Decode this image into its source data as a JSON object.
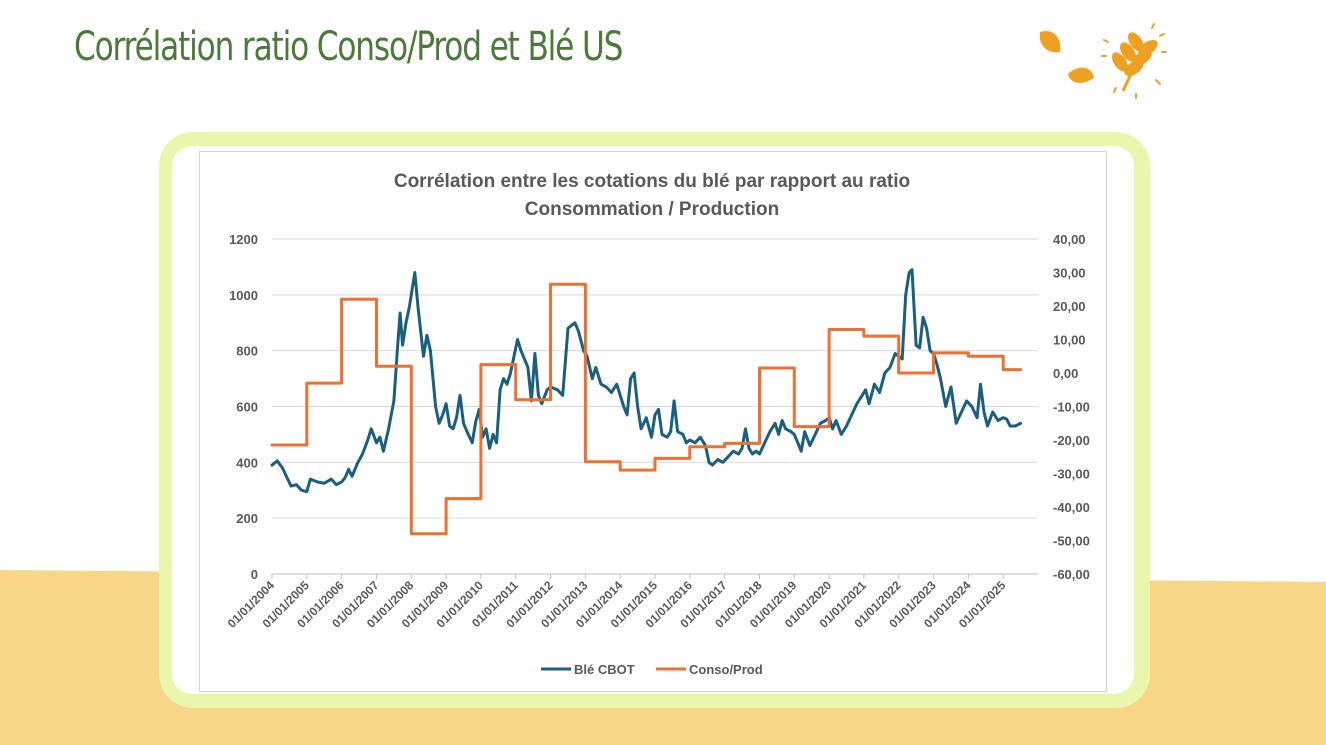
{
  "slide": {
    "title": "Corrélation ratio Conso/Prod et Blé US"
  },
  "logo": {
    "icon": "wheat-leaf-icon",
    "colors": {
      "leaf": "#f0a020"
    }
  },
  "colors": {
    "title": "#4a7a3a",
    "frame": "#ebf6ad",
    "band": "#f8d688",
    "series_ble": "#1a5f80",
    "series_conso": "#ed7031",
    "grid": "#d9d9d9",
    "text": "#595959"
  },
  "chart_data": {
    "type": "line",
    "title_line1": "Corrélation entre les cotations du blé par rapport au ratio",
    "title_line2": "Consommation / Production",
    "ylim": [
      0,
      1200
    ],
    "y_ticks": [
      "0",
      "200",
      "400",
      "600",
      "800",
      "1000",
      "1200"
    ],
    "y_tick_values": [
      0,
      200,
      400,
      600,
      800,
      1000,
      1200
    ],
    "y2lim": [
      -60,
      40
    ],
    "y2_ticks": [
      "-60,00",
      "-50,00",
      "-40,00",
      "-30,00",
      "-20,00",
      "-10,00",
      "0,00",
      "10,00",
      "20,00",
      "30,00",
      "40,00"
    ],
    "y2_tick_values": [
      -60,
      -50,
      -40,
      -30,
      -20,
      -10,
      0,
      10,
      20,
      30,
      40
    ],
    "x_range": [
      2004.0,
      2026.0
    ],
    "x_ticks": [
      "01/01/2004",
      "01/01/2005",
      "01/01/2006",
      "01/01/2007",
      "01/01/2008",
      "01/01/2009",
      "01/01/2010",
      "01/01/2011",
      "01/01/2012",
      "01/01/2013",
      "01/01/2014",
      "01/01/2015",
      "01/01/2016",
      "01/01/2017",
      "01/01/2018",
      "01/01/2019",
      "01/01/2020",
      "01/01/2021",
      "01/01/2022",
      "01/01/2023",
      "01/01/2024",
      "01/01/2025"
    ],
    "x_tick_values": [
      2004,
      2005,
      2006,
      2007,
      2008,
      2009,
      2010,
      2011,
      2012,
      2013,
      2014,
      2015,
      2016,
      2017,
      2018,
      2019,
      2020,
      2021,
      2022,
      2023,
      2024,
      2025
    ],
    "grid": true,
    "legend_position": "bottom",
    "series": [
      {
        "name": "Blé CBOT",
        "axis": "left",
        "color": "#1a5f80",
        "points": [
          [
            2004.0,
            390
          ],
          [
            2004.15,
            405
          ],
          [
            2004.3,
            380
          ],
          [
            2004.45,
            340
          ],
          [
            2004.55,
            315
          ],
          [
            2004.7,
            320
          ],
          [
            2004.85,
            300
          ],
          [
            2005.0,
            295
          ],
          [
            2005.1,
            340
          ],
          [
            2005.3,
            330
          ],
          [
            2005.5,
            325
          ],
          [
            2005.7,
            340
          ],
          [
            2005.85,
            320
          ],
          [
            2006.0,
            330
          ],
          [
            2006.1,
            345
          ],
          [
            2006.2,
            375
          ],
          [
            2006.3,
            350
          ],
          [
            2006.45,
            395
          ],
          [
            2006.6,
            430
          ],
          [
            2006.75,
            480
          ],
          [
            2006.85,
            520
          ],
          [
            2007.0,
            470
          ],
          [
            2007.1,
            490
          ],
          [
            2007.2,
            440
          ],
          [
            2007.35,
            520
          ],
          [
            2007.5,
            620
          ],
          [
            2007.6,
            800
          ],
          [
            2007.68,
            935
          ],
          [
            2007.75,
            820
          ],
          [
            2007.85,
            900
          ],
          [
            2007.95,
            960
          ],
          [
            2008.1,
            1080
          ],
          [
            2008.2,
            950
          ],
          [
            2008.35,
            780
          ],
          [
            2008.45,
            855
          ],
          [
            2008.55,
            800
          ],
          [
            2008.7,
            600
          ],
          [
            2008.8,
            540
          ],
          [
            2008.9,
            570
          ],
          [
            2009.0,
            610
          ],
          [
            2009.1,
            530
          ],
          [
            2009.2,
            520
          ],
          [
            2009.3,
            560
          ],
          [
            2009.4,
            640
          ],
          [
            2009.5,
            540
          ],
          [
            2009.6,
            510
          ],
          [
            2009.75,
            470
          ],
          [
            2009.85,
            545
          ],
          [
            2009.95,
            590
          ],
          [
            2010.05,
            490
          ],
          [
            2010.15,
            520
          ],
          [
            2010.25,
            450
          ],
          [
            2010.35,
            500
          ],
          [
            2010.45,
            470
          ],
          [
            2010.55,
            660
          ],
          [
            2010.65,
            700
          ],
          [
            2010.75,
            680
          ],
          [
            2010.85,
            720
          ],
          [
            2010.95,
            780
          ],
          [
            2011.05,
            840
          ],
          [
            2011.15,
            800
          ],
          [
            2011.25,
            770
          ],
          [
            2011.35,
            740
          ],
          [
            2011.45,
            620
          ],
          [
            2011.55,
            790
          ],
          [
            2011.65,
            640
          ],
          [
            2011.75,
            610
          ],
          [
            2011.9,
            660
          ],
          [
            2012.0,
            670
          ],
          [
            2012.2,
            660
          ],
          [
            2012.35,
            640
          ],
          [
            2012.5,
            880
          ],
          [
            2012.6,
            890
          ],
          [
            2012.7,
            900
          ],
          [
            2012.8,
            870
          ],
          [
            2012.95,
            800
          ],
          [
            2013.05,
            780
          ],
          [
            2013.2,
            700
          ],
          [
            2013.3,
            740
          ],
          [
            2013.45,
            680
          ],
          [
            2013.6,
            670
          ],
          [
            2013.75,
            650
          ],
          [
            2013.9,
            680
          ],
          [
            2014.0,
            640
          ],
          [
            2014.1,
            600
          ],
          [
            2014.2,
            570
          ],
          [
            2014.3,
            700
          ],
          [
            2014.4,
            720
          ],
          [
            2014.5,
            600
          ],
          [
            2014.6,
            520
          ],
          [
            2014.75,
            560
          ],
          [
            2014.9,
            490
          ],
          [
            2015.0,
            570
          ],
          [
            2015.1,
            590
          ],
          [
            2015.2,
            500
          ],
          [
            2015.35,
            490
          ],
          [
            2015.45,
            510
          ],
          [
            2015.55,
            620
          ],
          [
            2015.65,
            510
          ],
          [
            2015.8,
            500
          ],
          [
            2015.9,
            470
          ],
          [
            2016.0,
            480
          ],
          [
            2016.15,
            470
          ],
          [
            2016.3,
            490
          ],
          [
            2016.45,
            460
          ],
          [
            2016.55,
            400
          ],
          [
            2016.65,
            390
          ],
          [
            2016.8,
            410
          ],
          [
            2016.95,
            400
          ],
          [
            2017.1,
            420
          ],
          [
            2017.25,
            440
          ],
          [
            2017.4,
            430
          ],
          [
            2017.5,
            450
          ],
          [
            2017.6,
            520
          ],
          [
            2017.7,
            450
          ],
          [
            2017.8,
            430
          ],
          [
            2017.9,
            440
          ],
          [
            2018.0,
            430
          ],
          [
            2018.15,
            470
          ],
          [
            2018.3,
            510
          ],
          [
            2018.45,
            540
          ],
          [
            2018.55,
            500
          ],
          [
            2018.65,
            550
          ],
          [
            2018.75,
            520
          ],
          [
            2018.9,
            510
          ],
          [
            2019.0,
            500
          ],
          [
            2019.1,
            470
          ],
          [
            2019.2,
            440
          ],
          [
            2019.3,
            510
          ],
          [
            2019.45,
            460
          ],
          [
            2019.6,
            500
          ],
          [
            2019.75,
            540
          ],
          [
            2019.9,
            550
          ],
          [
            2020.0,
            560
          ],
          [
            2020.1,
            520
          ],
          [
            2020.2,
            550
          ],
          [
            2020.35,
            500
          ],
          [
            2020.5,
            530
          ],
          [
            2020.65,
            570
          ],
          [
            2020.8,
            610
          ],
          [
            2020.95,
            640
          ],
          [
            2021.05,
            660
          ],
          [
            2021.15,
            610
          ],
          [
            2021.3,
            680
          ],
          [
            2021.45,
            650
          ],
          [
            2021.6,
            720
          ],
          [
            2021.75,
            740
          ],
          [
            2021.9,
            790
          ],
          [
            2022.0,
            780
          ],
          [
            2022.1,
            770
          ],
          [
            2022.2,
            1000
          ],
          [
            2022.3,
            1080
          ],
          [
            2022.38,
            1090
          ],
          [
            2022.5,
            820
          ],
          [
            2022.6,
            810
          ],
          [
            2022.7,
            920
          ],
          [
            2022.8,
            880
          ],
          [
            2022.9,
            800
          ],
          [
            2023.0,
            790
          ],
          [
            2023.1,
            750
          ],
          [
            2023.2,
            700
          ],
          [
            2023.35,
            600
          ],
          [
            2023.5,
            670
          ],
          [
            2023.65,
            540
          ],
          [
            2023.8,
            580
          ],
          [
            2023.95,
            620
          ],
          [
            2024.1,
            600
          ],
          [
            2024.25,
            560
          ],
          [
            2024.35,
            680
          ],
          [
            2024.45,
            580
          ],
          [
            2024.55,
            530
          ],
          [
            2024.7,
            580
          ],
          [
            2024.85,
            550
          ],
          [
            2025.0,
            560
          ],
          [
            2025.1,
            555
          ],
          [
            2025.2,
            530
          ],
          [
            2025.35,
            530
          ],
          [
            2025.5,
            540
          ]
        ]
      },
      {
        "name": "Conso/Prod",
        "axis": "right",
        "color": "#ed7031",
        "points": [
          [
            2004.0,
            -21.5
          ],
          [
            2005.0,
            -21.5
          ],
          [
            2005.0,
            -3
          ],
          [
            2006.0,
            -3
          ],
          [
            2006.0,
            22
          ],
          [
            2007.0,
            22
          ],
          [
            2007.0,
            2
          ],
          [
            2008.0,
            2
          ],
          [
            2008.0,
            -48
          ],
          [
            2009.0,
            -48
          ],
          [
            2009.0,
            -37.5
          ],
          [
            2010.0,
            -37.5
          ],
          [
            2010.0,
            2.5
          ],
          [
            2011.0,
            2.5
          ],
          [
            2011.0,
            -8
          ],
          [
            2012.0,
            -8
          ],
          [
            2012.0,
            26.5
          ],
          [
            2013.0,
            26.5
          ],
          [
            2013.0,
            -26.5
          ],
          [
            2014.0,
            -26.5
          ],
          [
            2014.0,
            -29
          ],
          [
            2015.0,
            -29
          ],
          [
            2015.0,
            -25.5
          ],
          [
            2016.0,
            -25.5
          ],
          [
            2016.0,
            -22
          ],
          [
            2017.0,
            -22
          ],
          [
            2017.0,
            -21
          ],
          [
            2018.0,
            -21
          ],
          [
            2018.0,
            1.5
          ],
          [
            2019.0,
            1.5
          ],
          [
            2019.0,
            -16
          ],
          [
            2020.0,
            -16
          ],
          [
            2020.0,
            13
          ],
          [
            2021.0,
            13
          ],
          [
            2021.0,
            11
          ],
          [
            2022.0,
            11
          ],
          [
            2022.0,
            0
          ],
          [
            2023.0,
            0
          ],
          [
            2023.0,
            6
          ],
          [
            2024.0,
            6
          ],
          [
            2024.0,
            5
          ],
          [
            2025.0,
            5
          ],
          [
            2025.0,
            1
          ],
          [
            2025.5,
            1
          ]
        ]
      }
    ]
  }
}
